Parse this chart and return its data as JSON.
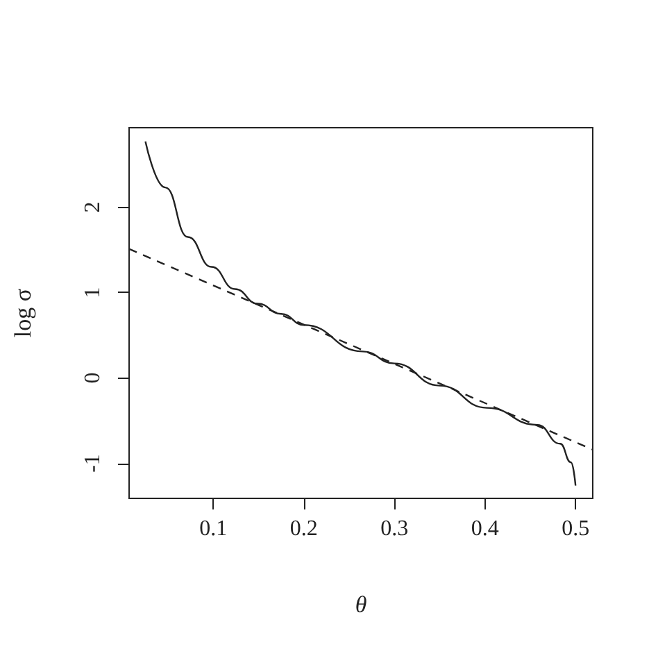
{
  "chart_data": {
    "type": "line",
    "xlabel": "θ",
    "ylabel": "log σ",
    "xlim": [
      0.007,
      0.519
    ],
    "ylim": [
      -1.41,
      2.93
    ],
    "xticks": [
      0.1,
      0.2,
      0.3,
      0.4,
      0.5
    ],
    "yticks": [
      -1,
      0,
      1,
      2
    ],
    "grid": false,
    "marker": "none",
    "series": [
      {
        "color": "#222222",
        "line_style": "solid",
        "x": [
          0.025,
          0.047,
          0.072,
          0.098,
          0.124,
          0.149,
          0.175,
          0.2,
          0.265,
          0.3,
          0.35,
          0.402,
          0.458,
          0.483,
          0.495,
          0.5
        ],
        "values": [
          2.77,
          2.23,
          1.65,
          1.3,
          1.04,
          0.87,
          0.75,
          0.62,
          0.31,
          0.17,
          -0.09,
          -0.35,
          -0.55,
          -0.77,
          -0.99,
          -1.26
        ]
      },
      {
        "color": "#222222",
        "line_style": "dashed",
        "x": [
          0.007,
          0.519
        ],
        "values": [
          1.51,
          -0.84
        ]
      }
    ]
  }
}
